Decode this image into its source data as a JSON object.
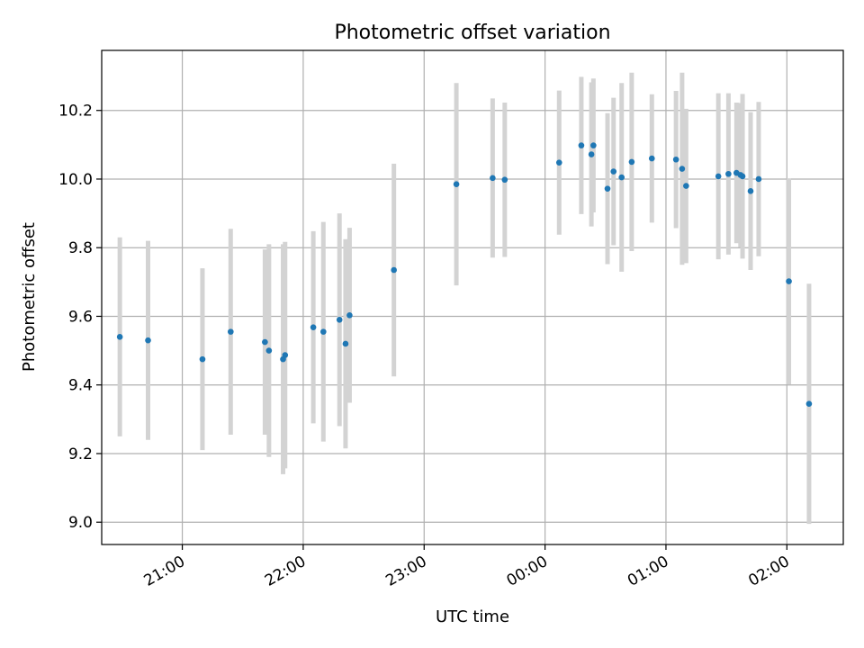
{
  "chart_data": {
    "type": "scatter",
    "title": "Photometric offset variation",
    "xlabel": "UTC time",
    "ylabel": "Photometric offset",
    "x_ticks": [
      "21:00",
      "22:00",
      "23:00",
      "00:00",
      "01:00",
      "02:00"
    ],
    "y_ticks": [
      "9.0",
      "9.2",
      "9.4",
      "9.6",
      "9.8",
      "10.0",
      "10.2"
    ],
    "xlim": [
      "20:20",
      "02:28"
    ],
    "ylim": [
      8.935,
      10.375
    ],
    "grid": true,
    "legend": "none",
    "colors": {
      "points": "#1f77b4",
      "errorbars": "#d3d3d3",
      "grid": "#b0b0b0"
    },
    "points": [
      {
        "t": "20:29",
        "y": 9.54,
        "err": 0.29
      },
      {
        "t": "20:43",
        "y": 9.53,
        "err": 0.29
      },
      {
        "t": "21:10",
        "y": 9.475,
        "err": 0.265
      },
      {
        "t": "21:24",
        "y": 9.555,
        "err": 0.3
      },
      {
        "t": "21:41",
        "y": 9.525,
        "err": 0.27
      },
      {
        "t": "21:43",
        "y": 9.5,
        "err": 0.31
      },
      {
        "t": "21:50",
        "y": 9.475,
        "err": 0.335
      },
      {
        "t": "21:51",
        "y": 9.487,
        "err": 0.33
      },
      {
        "t": "22:05",
        "y": 9.568,
        "err": 0.28
      },
      {
        "t": "22:10",
        "y": 9.555,
        "err": 0.32
      },
      {
        "t": "22:18",
        "y": 9.59,
        "err": 0.31
      },
      {
        "t": "22:21",
        "y": 9.52,
        "err": 0.305
      },
      {
        "t": "22:23",
        "y": 9.603,
        "err": 0.255
      },
      {
        "t": "22:45",
        "y": 9.735,
        "err": 0.31
      },
      {
        "t": "23:16",
        "y": 9.985,
        "err": 0.295
      },
      {
        "t": "23:34",
        "y": 10.003,
        "err": 0.232
      },
      {
        "t": "23:40",
        "y": 9.998,
        "err": 0.225
      },
      {
        "t": "00:07",
        "y": 10.048,
        "err": 0.21
      },
      {
        "t": "00:18",
        "y": 10.098,
        "err": 0.2
      },
      {
        "t": "00:23",
        "y": 10.072,
        "err": 0.21
      },
      {
        "t": "00:24",
        "y": 10.098,
        "err": 0.195
      },
      {
        "t": "00:31",
        "y": 9.972,
        "err": 0.22
      },
      {
        "t": "00:34",
        "y": 10.022,
        "err": 0.215
      },
      {
        "t": "00:38",
        "y": 10.005,
        "err": 0.275
      },
      {
        "t": "00:43",
        "y": 10.05,
        "err": 0.26
      },
      {
        "t": "00:53",
        "y": 10.06,
        "err": 0.187
      },
      {
        "t": "01:05",
        "y": 10.057,
        "err": 0.2
      },
      {
        "t": "01:08",
        "y": 10.03,
        "err": 0.28
      },
      {
        "t": "01:10",
        "y": 9.98,
        "err": 0.225
      },
      {
        "t": "01:26",
        "y": 10.008,
        "err": 0.242
      },
      {
        "t": "01:31",
        "y": 10.015,
        "err": 0.235
      },
      {
        "t": "01:35",
        "y": 10.018,
        "err": 0.205
      },
      {
        "t": "01:37",
        "y": 10.012,
        "err": 0.21
      },
      {
        "t": "01:38",
        "y": 10.008,
        "err": 0.24
      },
      {
        "t": "01:42",
        "y": 9.965,
        "err": 0.23
      },
      {
        "t": "01:46",
        "y": 10.0,
        "err": 0.225
      },
      {
        "t": "02:01",
        "y": 9.702,
        "err": 0.3
      },
      {
        "t": "02:11",
        "y": 9.345,
        "err": 0.35
      }
    ]
  }
}
